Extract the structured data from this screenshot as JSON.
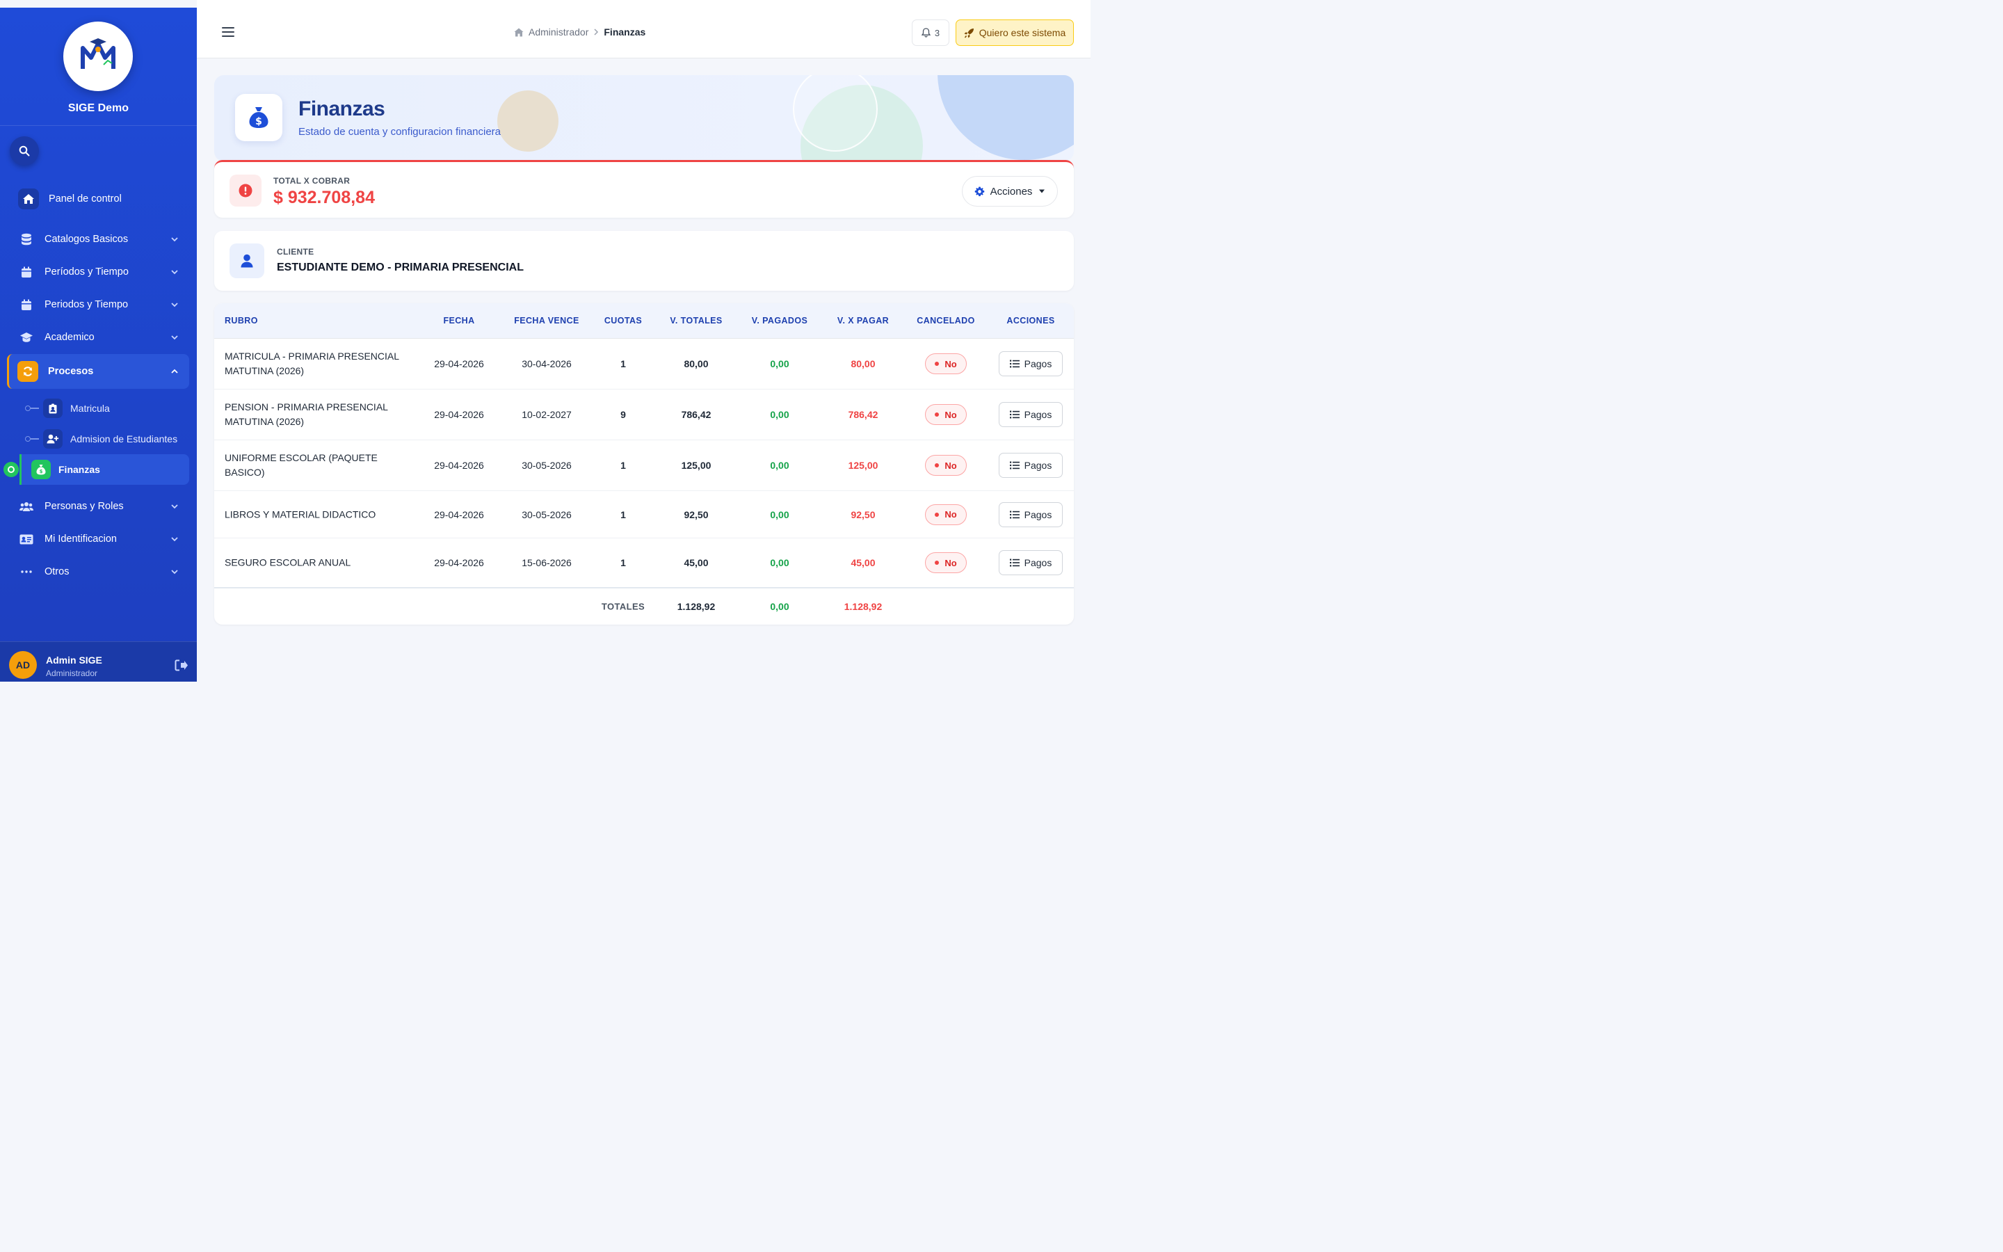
{
  "app": {
    "name": "SIGE Demo"
  },
  "sidebar": {
    "home_label": "Panel de control",
    "items": [
      {
        "label": "Catalogos Basicos"
      },
      {
        "label": "Períodos y Tiempo"
      },
      {
        "label": "Periodos y Tiempo"
      },
      {
        "label": "Academico"
      },
      {
        "label": "Procesos"
      },
      {
        "label": "Personas y Roles"
      },
      {
        "label": "Mi Identificacion"
      },
      {
        "label": "Otros"
      }
    ],
    "sub_items": [
      {
        "label": "Matricula"
      },
      {
        "label": "Admision de Estudiantes"
      },
      {
        "label": "Finanzas"
      }
    ],
    "user": {
      "initials": "AD",
      "name": "Admin SIGE",
      "role": "Administrador"
    }
  },
  "topbar": {
    "breadcrumb": {
      "parent": "Administrador",
      "current": "Finanzas"
    },
    "notifications": "3",
    "cta_label": "Quiero este sistema"
  },
  "hero": {
    "title": "Finanzas",
    "subtitle": "Estado de cuenta y configuracion financiera"
  },
  "total": {
    "label": "TOTAL X COBRAR",
    "value": "$ 932.708,84",
    "actions_label": "Acciones"
  },
  "client": {
    "label": "CLIENTE",
    "value": "ESTUDIANTE DEMO - PRIMARIA PRESENCIAL"
  },
  "table": {
    "headers": [
      "RUBRO",
      "FECHA",
      "FECHA VENCE",
      "CUOTAS",
      "V. TOTALES",
      "V. PAGADOS",
      "V. X PAGAR",
      "CANCELADO",
      "ACCIONES"
    ],
    "rows": [
      {
        "rubro": "MATRICULA - PRIMARIA PRESENCIAL MATUTINA (2026)",
        "fecha": "29-04-2026",
        "vence": "30-04-2026",
        "cuotas": "1",
        "total": "80,00",
        "pagado": "0,00",
        "pendiente": "80,00",
        "cancelado": "No",
        "accion": "Pagos"
      },
      {
        "rubro": "PENSION - PRIMARIA PRESENCIAL MATUTINA (2026)",
        "fecha": "29-04-2026",
        "vence": "10-02-2027",
        "cuotas": "9",
        "total": "786,42",
        "pagado": "0,00",
        "pendiente": "786,42",
        "cancelado": "No",
        "accion": "Pagos"
      },
      {
        "rubro": "UNIFORME ESCOLAR (PAQUETE BASICO)",
        "fecha": "29-04-2026",
        "vence": "30-05-2026",
        "cuotas": "1",
        "total": "125,00",
        "pagado": "0,00",
        "pendiente": "125,00",
        "cancelado": "No",
        "accion": "Pagos"
      },
      {
        "rubro": "LIBROS Y MATERIAL DIDACTICO",
        "fecha": "29-04-2026",
        "vence": "30-05-2026",
        "cuotas": "1",
        "total": "92,50",
        "pagado": "0,00",
        "pendiente": "92,50",
        "cancelado": "No",
        "accion": "Pagos"
      },
      {
        "rubro": "SEGURO ESCOLAR ANUAL",
        "fecha": "29-04-2026",
        "vence": "15-06-2026",
        "cuotas": "1",
        "total": "45,00",
        "pagado": "0,00",
        "pendiente": "45,00",
        "cancelado": "No",
        "accion": "Pagos"
      }
    ],
    "totals": {
      "label": "TOTALES",
      "total": "1.128,92",
      "pagado": "0,00",
      "pendiente": "1.128,92"
    }
  },
  "colors": {
    "sidebar": "#1f4bd8",
    "accent_orange": "#f59e0b",
    "accent_green": "#22c55e",
    "danger": "#ef4444",
    "success": "#16a34a"
  }
}
